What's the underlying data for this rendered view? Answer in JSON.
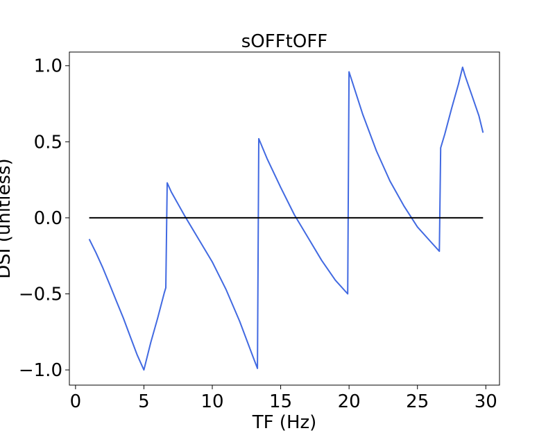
{
  "chart_data": {
    "type": "line",
    "title": "sOFFtOFF",
    "xlabel": "TF (Hz)",
    "ylabel": "DSI (unitless)",
    "xlim": [
      -0.45,
      31.0
    ],
    "ylim": [
      -1.1,
      1.09
    ],
    "x_ticks": [
      0,
      5,
      10,
      15,
      20,
      25,
      30
    ],
    "x_tick_labels": [
      "0",
      "5",
      "10",
      "15",
      "20",
      "25",
      "30"
    ],
    "y_ticks": [
      1.0,
      0.5,
      0.0,
      -0.5,
      -1.0
    ],
    "y_tick_labels": [
      "1.0",
      "0.5",
      "0.0",
      "−0.5",
      "−1.0"
    ],
    "grid": false,
    "series": [
      {
        "color": "#4169e1",
        "x": [
          1.0,
          1.5,
          2.0,
          2.5,
          3.0,
          3.5,
          4.0,
          4.5,
          5.0,
          5.5,
          6.0,
          6.5,
          6.6,
          6.7,
          7.0,
          8.0,
          9.0,
          10.0,
          11.0,
          12.0,
          13.0,
          13.3,
          13.4,
          14.0,
          15.0,
          16.0,
          17.0,
          18.0,
          19.0,
          19.9,
          20.0,
          21.0,
          22.0,
          23.0,
          24.0,
          25.0,
          26.0,
          26.6,
          26.7,
          27.0,
          27.5,
          28.0,
          28.3,
          28.5,
          29.0,
          29.5,
          29.8
        ],
        "y": [
          -0.14,
          -0.23,
          -0.33,
          -0.44,
          -0.55,
          -0.66,
          -0.78,
          -0.9,
          -1.0,
          -0.82,
          -0.66,
          -0.49,
          -0.46,
          0.23,
          0.17,
          0.01,
          -0.14,
          -0.29,
          -0.47,
          -0.68,
          -0.92,
          -0.99,
          0.52,
          0.39,
          0.2,
          0.02,
          -0.13,
          -0.28,
          -0.41,
          -0.5,
          0.96,
          0.68,
          0.44,
          0.24,
          0.08,
          -0.06,
          -0.16,
          -0.22,
          0.46,
          0.55,
          0.72,
          0.88,
          0.99,
          0.93,
          0.8,
          0.67,
          0.56
        ]
      },
      {
        "color": "#000000",
        "x": [
          1.0,
          29.8
        ],
        "y": [
          0.0,
          0.0
        ]
      }
    ]
  }
}
